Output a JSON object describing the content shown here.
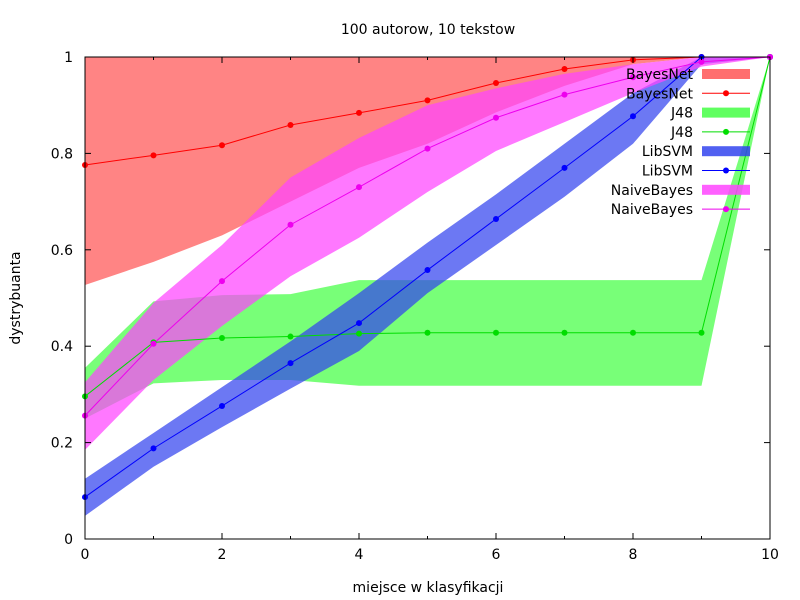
{
  "chart_data": {
    "type": "line",
    "title": "100 autorow, 10 tekstow",
    "xlabel": "miejsce w klasyfikacji",
    "ylabel": "dystrybuanta",
    "xlim": [
      0,
      10
    ],
    "ylim": [
      0,
      1
    ],
    "xticks": [
      0,
      2,
      4,
      6,
      8,
      10
    ],
    "yticks": [
      0,
      0.2,
      0.4,
      0.6,
      0.8,
      1
    ],
    "xtick_labels": [
      "0",
      "2",
      "4",
      "6",
      "8",
      "10"
    ],
    "ytick_labels": [
      "0",
      "0.2",
      "0.4",
      "0.6",
      "0.8",
      "1"
    ],
    "grid": false,
    "legend_position": "top-right",
    "x": [
      0,
      1,
      2,
      3,
      4,
      5,
      6,
      7,
      8,
      9,
      10
    ],
    "series": [
      {
        "name": "BayesNet",
        "color": "#ff0000",
        "band_color": "#ff5555",
        "values": [
          0.776,
          0.796,
          0.817,
          0.859,
          0.884,
          0.91,
          0.946,
          0.975,
          0.994,
          1.0,
          1.0
        ],
        "band_upper": [
          1.0,
          1.0,
          1.0,
          1.0,
          1.0,
          1.0,
          1.0,
          1.0,
          1.0,
          1.0,
          1.0
        ],
        "band_lower": [
          0.527,
          0.575,
          0.63,
          0.7,
          0.77,
          0.82,
          0.885,
          0.94,
          0.985,
          1.0,
          1.0
        ]
      },
      {
        "name": "J48",
        "color": "#00dd00",
        "band_color": "#44ff44",
        "values": [
          0.296,
          0.408,
          0.417,
          0.42,
          0.426,
          0.428,
          0.428,
          0.428,
          0.428,
          0.428,
          1.0
        ],
        "band_upper": [
          0.355,
          0.493,
          0.506,
          0.508,
          0.537,
          0.537,
          0.537,
          0.537,
          0.537,
          0.537,
          1.0
        ],
        "band_lower": [
          0.25,
          0.323,
          0.33,
          0.33,
          0.318,
          0.318,
          0.318,
          0.318,
          0.318,
          0.318,
          1.0
        ]
      },
      {
        "name": "LibSVM",
        "color": "#0000ff",
        "band_color": "#3344ee",
        "values": [
          0.087,
          0.188,
          0.276,
          0.365,
          0.448,
          0.558,
          0.664,
          0.77,
          0.877,
          1.0,
          1.0
        ],
        "band_upper": [
          0.125,
          0.22,
          0.315,
          0.41,
          0.51,
          0.615,
          0.715,
          0.82,
          0.925,
          1.0,
          1.0
        ],
        "band_lower": [
          0.048,
          0.15,
          0.232,
          0.312,
          0.39,
          0.51,
          0.61,
          0.71,
          0.82,
          0.985,
          1.0
        ]
      },
      {
        "name": "NaiveBayes",
        "color": "#ee00ee",
        "band_color": "#ff44ff",
        "values": [
          0.256,
          0.405,
          0.535,
          0.652,
          0.73,
          0.81,
          0.874,
          0.922,
          0.958,
          0.99,
          1.0
        ],
        "band_upper": [
          0.325,
          0.49,
          0.61,
          0.75,
          0.832,
          0.9,
          0.935,
          0.965,
          0.985,
          1.0,
          1.0
        ],
        "band_lower": [
          0.185,
          0.33,
          0.442,
          0.545,
          0.625,
          0.72,
          0.805,
          0.865,
          0.925,
          0.98,
          1.0
        ]
      }
    ],
    "legend_entries": [
      {
        "label": "BayesNet",
        "kind": "band",
        "series": 0
      },
      {
        "label": "BayesNet",
        "kind": "line",
        "series": 0
      },
      {
        "label": "J48",
        "kind": "band",
        "series": 1
      },
      {
        "label": "J48",
        "kind": "line",
        "series": 1
      },
      {
        "label": "LibSVM",
        "kind": "band",
        "series": 2
      },
      {
        "label": "LibSVM",
        "kind": "line",
        "series": 2
      },
      {
        "label": "NaiveBayes",
        "kind": "band",
        "series": 3
      },
      {
        "label": "NaiveBayes",
        "kind": "line",
        "series": 3
      }
    ]
  }
}
